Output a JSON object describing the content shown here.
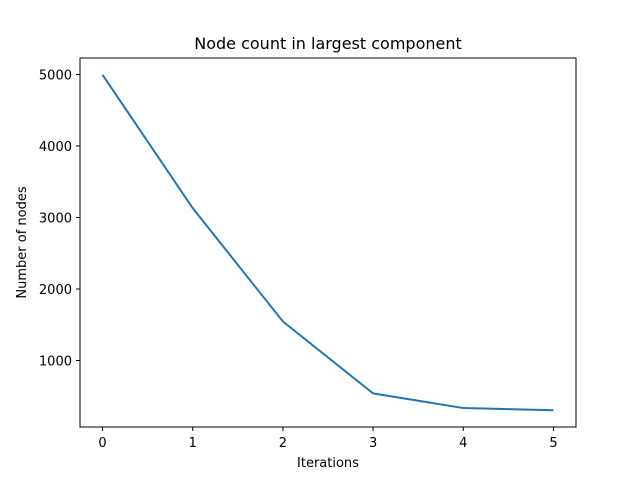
{
  "chart_data": {
    "type": "line",
    "title": "Node count in largest component",
    "xlabel": "Iterations",
    "ylabel": "Number of nodes",
    "x": [
      0,
      1,
      2,
      3,
      4,
      5
    ],
    "series": [
      {
        "values": [
          4995,
          3130,
          1545,
          540,
          335,
          305
        ],
        "color": "#1f77b4"
      }
    ],
    "xlim": [
      -0.25,
      5.25
    ],
    "ylim": [
      70,
      5230
    ],
    "xticks": [
      0,
      1,
      2,
      3,
      4,
      5
    ],
    "yticks": [
      1000,
      2000,
      3000,
      4000,
      5000
    ],
    "grid": false,
    "legend": "none"
  }
}
